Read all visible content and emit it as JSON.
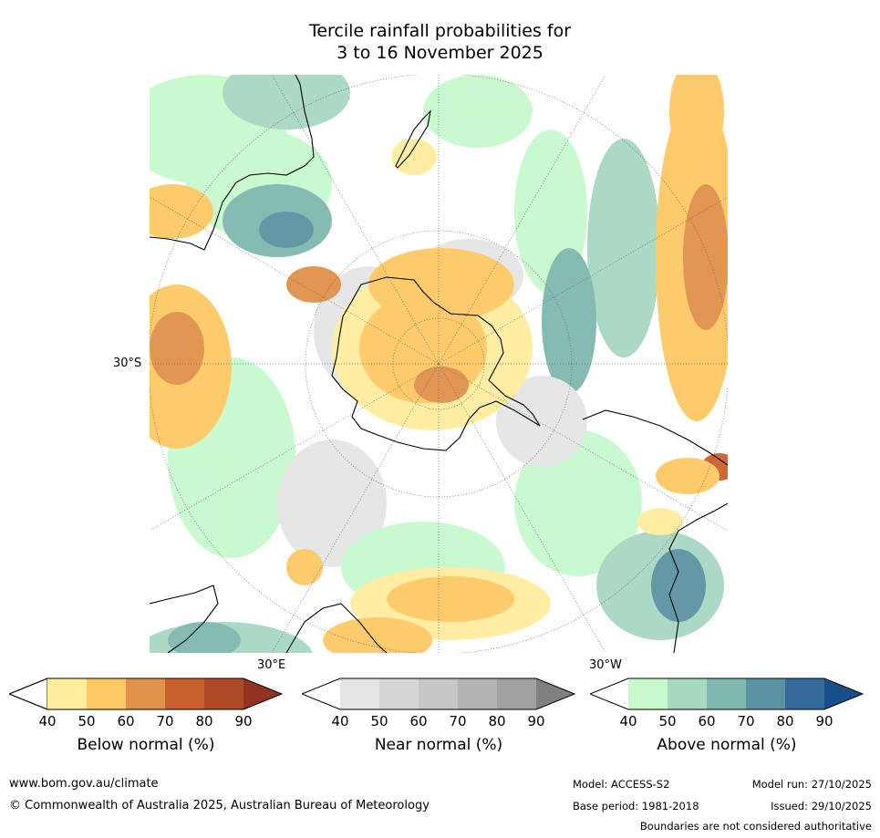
{
  "title_line1": "Tercile rainfall probabilities for",
  "title_line2": "3 to 16 November 2025",
  "map": {
    "labels": {
      "lat_30s": "30°S",
      "lon_30e": "30°E",
      "lon_30w": "30°W"
    },
    "colors": {
      "below": [
        "#ffeda0",
        "#fec965",
        "#e0924a",
        "#c9612e",
        "#ad4a28",
        "#93321f"
      ],
      "near": [
        "#e5e5e5",
        "#d6d6d6",
        "#c7c7c7",
        "#b3b3b3",
        "#a1a1a1",
        "#808080"
      ],
      "above": [
        "#c7f9cc",
        "#a7d8c0",
        "#80b8b0",
        "#5b93a3",
        "#356a9a",
        "#184e8c"
      ]
    }
  },
  "colorbars": [
    {
      "label": "Below normal (%)",
      "ticks": [
        "40",
        "50",
        "60",
        "70",
        "80",
        "90"
      ]
    },
    {
      "label": "Near normal (%)",
      "ticks": [
        "40",
        "50",
        "60",
        "70",
        "80",
        "90"
      ]
    },
    {
      "label": "Above normal (%)",
      "ticks": [
        "40",
        "50",
        "60",
        "70",
        "80",
        "90"
      ]
    }
  ],
  "footer": {
    "website": "www.bom.gov.au/climate",
    "copyright": "© Commonwealth of Australia 2025, Australian Bureau of Meteorology",
    "model": "Model: ACCESS-S2",
    "base_period": "Base period: 1981-2018",
    "model_run": "Model run: 27/10/2025",
    "issued": "Issued: 29/10/2025",
    "disclaimer": "Boundaries are not considered authoritative"
  }
}
